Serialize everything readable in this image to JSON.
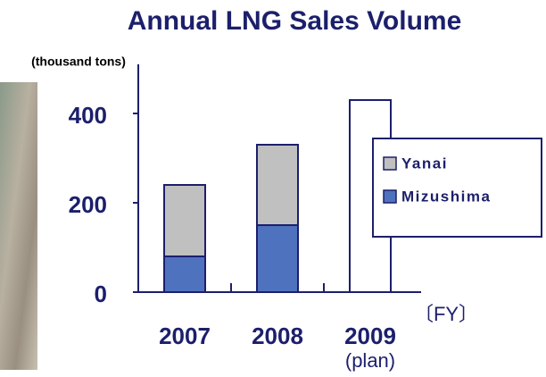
{
  "chart_data": {
    "type": "stacked-bar",
    "title": "Annual LNG Sales Volume",
    "ylabel": "(thousand tons)",
    "xlabel": "〔FY〕",
    "categories": [
      "2007",
      "2008",
      "2009"
    ],
    "category_notes": [
      null,
      null,
      "(plan)"
    ],
    "series": [
      {
        "name": "Mizushima",
        "color": "#4f72bf",
        "values": [
          80,
          150,
          null
        ]
      },
      {
        "name": "Yanai",
        "color": "#c0c0c0",
        "values": [
          160,
          180,
          null
        ]
      },
      {
        "color": "#ffffff",
        "values": [
          null,
          null,
          430
        ]
      }
    ],
    "ylim": [
      0,
      510
    ],
    "yticks": [
      0,
      200,
      400
    ],
    "grid": false,
    "legend": "right"
  }
}
